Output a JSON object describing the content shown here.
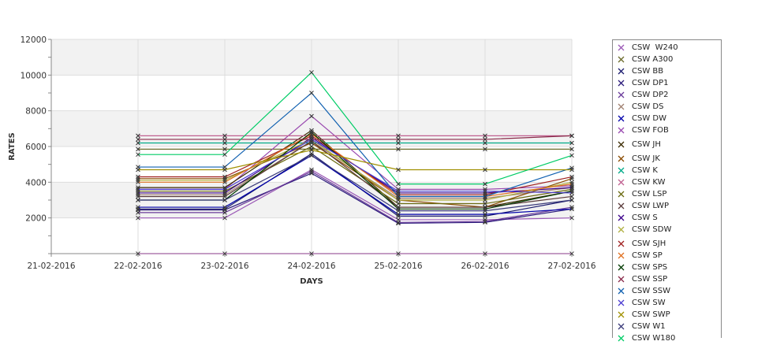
{
  "chart_data": {
    "type": "line",
    "title": "",
    "xlabel": "DAYS",
    "ylabel": "RATES",
    "categories": [
      "21-02-2016",
      "22-02-2016",
      "23-02-2016",
      "24-02-2016",
      "25-02-2016",
      "26-02-2016",
      "27-02-2016"
    ],
    "ylim": [
      0,
      12000
    ],
    "yticks": [
      "2000",
      "4000",
      "6000",
      "8000",
      "10000",
      "12000"
    ],
    "grid": true,
    "legend_position": "right",
    "series": [
      {
        "name": "CSW  W240",
        "color": "#9b59b6",
        "values": [
          null,
          2000,
          2000,
          4700,
          1900,
          1900,
          2000
        ]
      },
      {
        "name": "CSW A300",
        "color": "#6b6b2a",
        "values": [
          null,
          5850,
          5850,
          5850,
          5850,
          5850,
          5850
        ]
      },
      {
        "name": "CSW BB",
        "color": "#1a1a6e",
        "values": [
          null,
          2500,
          2500,
          5600,
          2100,
          2100,
          3000
        ]
      },
      {
        "name": "CSW DP1",
        "color": "#2a1a7a",
        "values": [
          null,
          2450,
          2450,
          4500,
          1700,
          1750,
          2500
        ]
      },
      {
        "name": "CSW DP2",
        "color": "#6a3a9a",
        "values": [
          null,
          2300,
          2300,
          4600,
          1750,
          1800,
          2600
        ]
      },
      {
        "name": "CSW DS",
        "color": "#a08070",
        "values": [
          null,
          3300,
          3300,
          6300,
          3100,
          3100,
          3700
        ]
      },
      {
        "name": "CSW DW",
        "color": "#0000aa",
        "values": [
          null,
          2600,
          2600,
          5500,
          2200,
          2200,
          2500
        ]
      },
      {
        "name": "CSW FOB",
        "color": "#9a4ab0",
        "values": [
          null,
          3600,
          3600,
          7700,
          3600,
          3600,
          3800
        ]
      },
      {
        "name": "CSW JH",
        "color": "#3a2a00",
        "values": [
          null,
          3700,
          3700,
          6900,
          2600,
          2600,
          3500
        ]
      },
      {
        "name": "CSW JK",
        "color": "#8a4a00",
        "values": [
          null,
          4200,
          4200,
          6200,
          3000,
          2600,
          4200
        ]
      },
      {
        "name": "CSW K",
        "color": "#00aa88",
        "values": [
          null,
          6200,
          6200,
          6200,
          6200,
          6200,
          6200
        ]
      },
      {
        "name": "CSW KW",
        "color": "#c06090",
        "values": [
          null,
          6600,
          6600,
          6600,
          6600,
          6600,
          6600
        ]
      },
      {
        "name": "CSW LSP",
        "color": "#6a6a10",
        "values": [
          null,
          3500,
          3500,
          6000,
          2800,
          2800,
          3600
        ]
      },
      {
        "name": "CSW LWP",
        "color": "#5a3a3a",
        "values": [
          null,
          3200,
          3200,
          6300,
          2600,
          2600,
          3200
        ]
      },
      {
        "name": "CSW S",
        "color": "#3a008a",
        "values": [
          null,
          3400,
          3400,
          6500,
          3400,
          3400,
          3700
        ]
      },
      {
        "name": "CSW SDW",
        "color": "#b0b040",
        "values": [
          null,
          4100,
          4100,
          6400,
          3000,
          3000,
          4000
        ]
      },
      {
        "name": "CSW SJH",
        "color": "#a02020",
        "values": [
          null,
          4300,
          4300,
          6600,
          3300,
          3300,
          4300
        ]
      },
      {
        "name": "CSW SP",
        "color": "#e07020",
        "values": [
          null,
          4000,
          4000,
          6700,
          3200,
          3200,
          3900
        ]
      },
      {
        "name": "CSW SPS",
        "color": "#003a00",
        "values": [
          null,
          3000,
          3000,
          6800,
          2500,
          2500,
          3500
        ]
      },
      {
        "name": "CSW SSP",
        "color": "#8a2a4a",
        "values": [
          null,
          6400,
          6400,
          6400,
          6400,
          6400,
          6600
        ]
      },
      {
        "name": "CSW SSW",
        "color": "#1060b0",
        "values": [
          null,
          4850,
          4850,
          9000,
          3200,
          3200,
          4800
        ]
      },
      {
        "name": "CSW SW",
        "color": "#4a3ad0",
        "values": [
          null,
          3600,
          3600,
          6400,
          3500,
          3500,
          3400
        ]
      },
      {
        "name": "CSW SWP",
        "color": "#a09000",
        "values": [
          null,
          4700,
          4700,
          5800,
          4700,
          4700,
          4700
        ]
      },
      {
        "name": "CSW W1",
        "color": "#3a3a7a",
        "values": [
          null,
          3000,
          3000,
          5500,
          2400,
          2400,
          3000
        ]
      },
      {
        "name": "CSW W180",
        "color": "#00cc66",
        "values": [
          null,
          5550,
          5550,
          10150,
          3900,
          3900,
          5500
        ]
      }
    ]
  }
}
